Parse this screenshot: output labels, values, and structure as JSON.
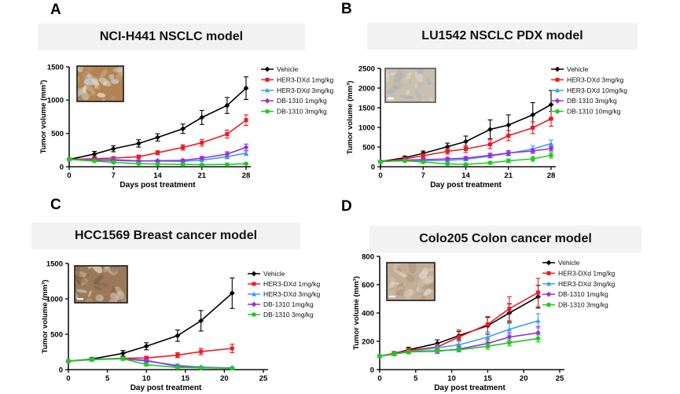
{
  "styles": {
    "title_bg": "#f3f2f2",
    "axis_color": "#111111",
    "text_color": "#000000",
    "series_colors": {
      "vehicle": "#000000",
      "her3_dxd_low": "#EC1B24",
      "her3_dxd_high": "#3AA0E8",
      "db1310_low": "#9C2FD8",
      "db1310_high": "#1FCB1F"
    }
  },
  "chart_data": [
    {
      "panel_label": "A",
      "title": "NCI-H441 NSCLC model",
      "type": "line",
      "xlabel": "Days post treatment",
      "ylabel": "Tumor volume (mm³)",
      "xlim": [
        0,
        28
      ],
      "xticks": [
        0,
        7,
        14,
        21,
        28
      ],
      "ylim": [
        0,
        1500
      ],
      "yticks": [
        0,
        500,
        1000,
        1500
      ],
      "grid": false,
      "legend_position": "right",
      "x": [
        0,
        4,
        7,
        11,
        14,
        18,
        21,
        25,
        28
      ],
      "series": [
        {
          "name": "Vehicle",
          "color": "#000000",
          "marker": "diamond",
          "values": [
            110,
            190,
            270,
            350,
            440,
            570,
            740,
            920,
            1180
          ],
          "errors": [
            15,
            40,
            45,
            55,
            55,
            70,
            105,
            120,
            170
          ]
        },
        {
          "name": "HER3-DXd 1mg/kg",
          "color": "#EC1B24",
          "marker": "square",
          "values": [
            110,
            120,
            130,
            150,
            210,
            290,
            360,
            490,
            700
          ],
          "errors": [
            15,
            20,
            20,
            25,
            30,
            40,
            50,
            60,
            80
          ]
        },
        {
          "name": "HER3-DXd 3mg/kg",
          "color": "#3AA0E8",
          "marker": "triangle",
          "values": [
            110,
            105,
            108,
            90,
            85,
            80,
            100,
            150,
            205
          ],
          "errors": [
            15,
            15,
            15,
            15,
            15,
            15,
            20,
            30,
            35
          ]
        },
        {
          "name": "DB-1310 1mg/kg",
          "color": "#9C2FD8",
          "marker": "diamond",
          "values": [
            110,
            100,
            95,
            85,
            90,
            95,
            130,
            190,
            290
          ],
          "errors": [
            15,
            15,
            15,
            12,
            12,
            15,
            25,
            35,
            50
          ]
        },
        {
          "name": "DB-1310 3mg/kg",
          "color": "#1FCB1F",
          "marker": "circle",
          "values": [
            110,
            85,
            65,
            45,
            40,
            35,
            30,
            35,
            45
          ],
          "errors": [
            15,
            12,
            10,
            10,
            8,
            8,
            8,
            8,
            10
          ]
        }
      ],
      "inset": {
        "kind": "IHC-histology-image",
        "base": "#b08455",
        "tones": [
          "#e9e2d6",
          "#c9a87e",
          "#cdd5e2"
        ],
        "scalebar": false,
        "border": "#1a1a1a"
      }
    },
    {
      "panel_label": "B",
      "title": "LU1542 NSCLC PDX model",
      "type": "line",
      "xlabel": "Day post treatment",
      "ylabel": "Tumor volume (mm³)",
      "xlim": [
        0,
        28
      ],
      "xticks": [
        0,
        7,
        14,
        21,
        28
      ],
      "ylim": [
        0,
        2500
      ],
      "yticks": [
        0,
        500,
        1000,
        1500,
        2000,
        2500
      ],
      "grid": false,
      "legend_position": "right",
      "x": [
        0,
        4,
        7,
        11,
        14,
        18,
        21,
        25,
        28
      ],
      "series": [
        {
          "name": "Vehicle",
          "color": "#000000",
          "marker": "diamond",
          "values": [
            130,
            230,
            340,
            510,
            640,
            950,
            1060,
            1320,
            1580
          ],
          "errors": [
            20,
            40,
            60,
            90,
            140,
            240,
            260,
            310,
            360
          ]
        },
        {
          "name": "HER3-DXd 3mg/kg",
          "color": "#EC1B24",
          "marker": "square",
          "values": [
            130,
            200,
            280,
            390,
            450,
            570,
            790,
            990,
            1220
          ],
          "errors": [
            20,
            35,
            50,
            70,
            90,
            110,
            130,
            150,
            190
          ]
        },
        {
          "name": "HER3-DXd 10mg/kg",
          "color": "#3AA0E8",
          "marker": "triangle",
          "values": [
            130,
            160,
            150,
            160,
            190,
            270,
            340,
            450,
            590
          ],
          "errors": [
            20,
            25,
            25,
            30,
            35,
            45,
            60,
            80,
            90
          ]
        },
        {
          "name": "DB-1310 3mg/kg",
          "color": "#9C2FD8",
          "marker": "diamond",
          "values": [
            130,
            170,
            180,
            200,
            220,
            290,
            350,
            400,
            460
          ],
          "errors": [
            20,
            25,
            30,
            35,
            40,
            55,
            60,
            60,
            60
          ]
        },
        {
          "name": "DB-1310 10mg/kg",
          "color": "#1FCB1F",
          "marker": "circle",
          "values": [
            130,
            150,
            120,
            70,
            60,
            100,
            150,
            200,
            290
          ],
          "errors": [
            20,
            25,
            25,
            20,
            20,
            30,
            45,
            60,
            70
          ]
        }
      ],
      "inset": {
        "kind": "IHC-histology-image",
        "base": "#c9c0b1",
        "tones": [
          "#dcd6ca",
          "#a9b0be",
          "#bfb4a2"
        ],
        "scalebar": true,
        "border": "#555555"
      }
    },
    {
      "panel_label": "C",
      "title": "HCC1569 Breast cancer model",
      "type": "line",
      "xlabel": "Day post treatment",
      "ylabel": "Tumor volume (mm³)",
      "xlim": [
        0,
        25
      ],
      "xticks": [
        0,
        5,
        10,
        15,
        20,
        25
      ],
      "ylim": [
        0,
        1500
      ],
      "yticks": [
        0,
        500,
        1000,
        1500
      ],
      "grid": false,
      "legend_position": "right",
      "x": [
        0,
        3,
        7,
        10,
        14,
        17,
        21
      ],
      "series": [
        {
          "name": "Vehicle",
          "color": "#000000",
          "marker": "diamond",
          "values": [
            120,
            150,
            230,
            330,
            480,
            690,
            1080
          ],
          "errors": [
            15,
            20,
            40,
            50,
            80,
            145,
            215
          ]
        },
        {
          "name": "HER3-DXd 1mg/kg",
          "color": "#EC1B24",
          "marker": "square",
          "values": [
            120,
            145,
            160,
            165,
            205,
            255,
            300
          ],
          "errors": [
            15,
            20,
            20,
            25,
            35,
            45,
            60
          ]
        },
        {
          "name": "HER3-DXd 3mg/kg",
          "color": "#3AA0E8",
          "marker": "triangle",
          "values": [
            120,
            140,
            155,
            120,
            60,
            35,
            20
          ],
          "errors": [
            15,
            15,
            20,
            20,
            20,
            12,
            8
          ]
        },
        {
          "name": "DB-1310 1mg/kg",
          "color": "#9C2FD8",
          "marker": "diamond",
          "values": [
            120,
            145,
            155,
            130,
            45,
            30,
            25
          ],
          "errors": [
            15,
            15,
            20,
            20,
            12,
            8,
            8
          ]
        },
        {
          "name": "DB-1310 3mg/kg",
          "color": "#1FCB1F",
          "marker": "circle",
          "values": [
            120,
            145,
            155,
            70,
            30,
            25,
            20
          ],
          "errors": [
            15,
            15,
            20,
            18,
            8,
            8,
            6
          ]
        }
      ],
      "inset": {
        "kind": "IHC-histology-image",
        "base": "#9a7a5a",
        "tones": [
          "#cbb79d",
          "#7a5f44",
          "#e3d8c8"
        ],
        "scalebar": true,
        "border": "#1a1a1a"
      }
    },
    {
      "panel_label": "D",
      "title": "Colo205 Colon cancer model",
      "type": "line",
      "xlabel": "Day post treatment",
      "ylabel": "Tumor volume (mm³)",
      "xlim": [
        0,
        25
      ],
      "xticks": [
        0,
        5,
        10,
        15,
        20,
        25
      ],
      "ylim": [
        0,
        800
      ],
      "yticks": [
        0,
        200,
        400,
        600,
        800
      ],
      "grid": false,
      "legend_position": "right",
      "x": [
        0,
        2,
        4,
        8,
        11,
        15,
        18,
        22
      ],
      "series": [
        {
          "name": "Vehicle",
          "color": "#000000",
          "marker": "diamond",
          "values": [
            95,
            115,
            140,
            185,
            240,
            310,
            400,
            515
          ],
          "errors": [
            8,
            12,
            18,
            25,
            30,
            60,
            65,
            80
          ]
        },
        {
          "name": "HER3-DXd 1mg/kg",
          "color": "#EC1B24",
          "marker": "square",
          "values": [
            95,
            115,
            135,
            160,
            230,
            320,
            430,
            545
          ],
          "errors": [
            8,
            12,
            15,
            20,
            50,
            55,
            85,
            100
          ]
        },
        {
          "name": "HER3-DXd 3mg/kg",
          "color": "#3AA0E8",
          "marker": "triangle",
          "values": [
            95,
            110,
            125,
            155,
            175,
            230,
            285,
            345
          ],
          "errors": [
            8,
            10,
            12,
            18,
            25,
            35,
            40,
            50
          ]
        },
        {
          "name": "DB-1310 1mg/kg",
          "color": "#9C2FD8",
          "marker": "diamond",
          "values": [
            95,
            110,
            125,
            130,
            145,
            185,
            230,
            260
          ],
          "errors": [
            8,
            10,
            12,
            15,
            18,
            25,
            30,
            45
          ]
        },
        {
          "name": "DB-1310 3mg/kg",
          "color": "#1FCB1F",
          "marker": "circle",
          "values": [
            95,
            110,
            125,
            135,
            140,
            165,
            190,
            220
          ],
          "errors": [
            8,
            10,
            12,
            15,
            15,
            20,
            22,
            25
          ]
        }
      ],
      "inset": {
        "kind": "IHC-histology-image",
        "base": "#c3ad97",
        "tones": [
          "#e6ddd1",
          "#a9917a",
          "#d8cbbb"
        ],
        "scalebar": true,
        "border": "#1a1a1a"
      }
    }
  ]
}
